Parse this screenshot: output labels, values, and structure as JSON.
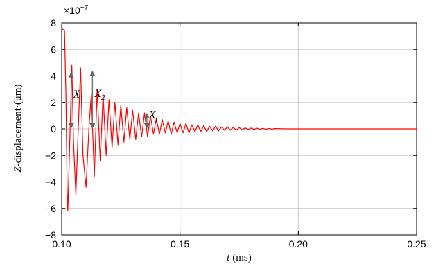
{
  "chart_data": {
    "type": "line",
    "title": "",
    "xlabel": "t (ms)",
    "xlabel_var": "t",
    "xlabel_unit": " (ms)",
    "ylabel": "Z-displacement (μm)",
    "ylabel_prefix": "Z",
    "ylabel_rest": "-displacement·(μm)",
    "y_multiplier": "×10⁻⁷",
    "y_multiplier_base": "×10",
    "y_multiplier_exp": "−7",
    "xlim": [
      0.1,
      0.25
    ],
    "ylim": [
      -8,
      8
    ],
    "xticks": [
      0.1,
      0.15,
      0.2,
      0.25
    ],
    "xtick_labels": [
      "0.10",
      "0.15",
      "0.20",
      "0.25"
    ],
    "yticks": [
      -8,
      -6,
      -4,
      -2,
      0,
      2,
      4,
      6,
      8
    ],
    "ytick_labels": [
      "−8",
      "−6",
      "−4",
      "−2",
      "0",
      "2",
      "4",
      "6",
      "8"
    ],
    "grid": true,
    "line_color": "#ff0000",
    "series": [
      {
        "x": [
          0.1,
          0.1012,
          0.1018,
          0.1023,
          0.1026,
          0.1031,
          0.1043,
          0.105,
          0.106,
          0.1069,
          0.108,
          0.109,
          0.1103,
          0.1115,
          0.1125,
          0.1138,
          0.115,
          0.1163,
          0.1175,
          0.1188,
          0.12,
          0.1213,
          0.1225,
          0.1238,
          0.125,
          0.1263,
          0.1275,
          0.1288,
          0.13,
          0.1313,
          0.1325,
          0.1338,
          0.135,
          0.1363,
          0.1375,
          0.1388,
          0.14,
          0.1413,
          0.1425,
          0.1438,
          0.145,
          0.1463,
          0.1475,
          0.1488,
          0.15,
          0.1513,
          0.1525,
          0.1538,
          0.155,
          0.1563,
          0.1575,
          0.1588,
          0.16,
          0.1613,
          0.1625,
          0.1638,
          0.165,
          0.1663,
          0.1675,
          0.1688,
          0.17,
          0.1713,
          0.1725,
          0.1738,
          0.175,
          0.1763,
          0.1775,
          0.1788,
          0.18,
          0.1813,
          0.1825,
          0.1838,
          0.185,
          0.1863,
          0.1875,
          0.1888,
          0.19,
          0.195,
          0.2,
          0.205,
          0.21,
          0.22,
          0.23,
          0.24,
          0.25
        ],
        "y": [
          7.6,
          7.4,
          2.5,
          -4.5,
          -6.2,
          -3.0,
          4.8,
          -1.0,
          -5.0,
          -0.5,
          4.6,
          -2.0,
          -4.4,
          0.0,
          2.6,
          -3.6,
          3.0,
          -2.4,
          2.6,
          -2.0,
          2.2,
          -1.4,
          2.0,
          -1.2,
          1.8,
          -1.0,
          1.6,
          -0.8,
          1.4,
          -0.8,
          1.2,
          -0.6,
          1.2,
          -0.6,
          1.0,
          -0.4,
          0.8,
          -0.4,
          0.7,
          -0.3,
          0.6,
          -0.4,
          0.5,
          -0.3,
          0.4,
          -0.3,
          0.4,
          -0.3,
          0.3,
          -0.2,
          0.3,
          -0.2,
          0.25,
          -0.2,
          0.2,
          -0.15,
          0.2,
          -0.15,
          0.15,
          -0.1,
          0.15,
          -0.1,
          0.12,
          -0.1,
          0.1,
          -0.08,
          0.08,
          -0.06,
          0.06,
          -0.05,
          0.05,
          -0.04,
          0.04,
          -0.03,
          0.03,
          -0.02,
          0.02,
          0.0,
          0.0,
          0.0,
          0.0,
          0.0,
          0.0,
          0.0,
          0.0
        ]
      }
    ],
    "annotations": [
      {
        "base": "X",
        "sub": "1",
        "x": 0.104,
        "y_top": 4.3,
        "y_bottom": 0.0
      },
      {
        "base": "X",
        "sub": "2",
        "x": 0.113,
        "y_top": 4.4,
        "y_bottom": 0.0
      },
      {
        "base": "X",
        "sub": "j",
        "x": 0.136,
        "y_top": 1.2,
        "y_bottom": 0.0
      }
    ]
  }
}
